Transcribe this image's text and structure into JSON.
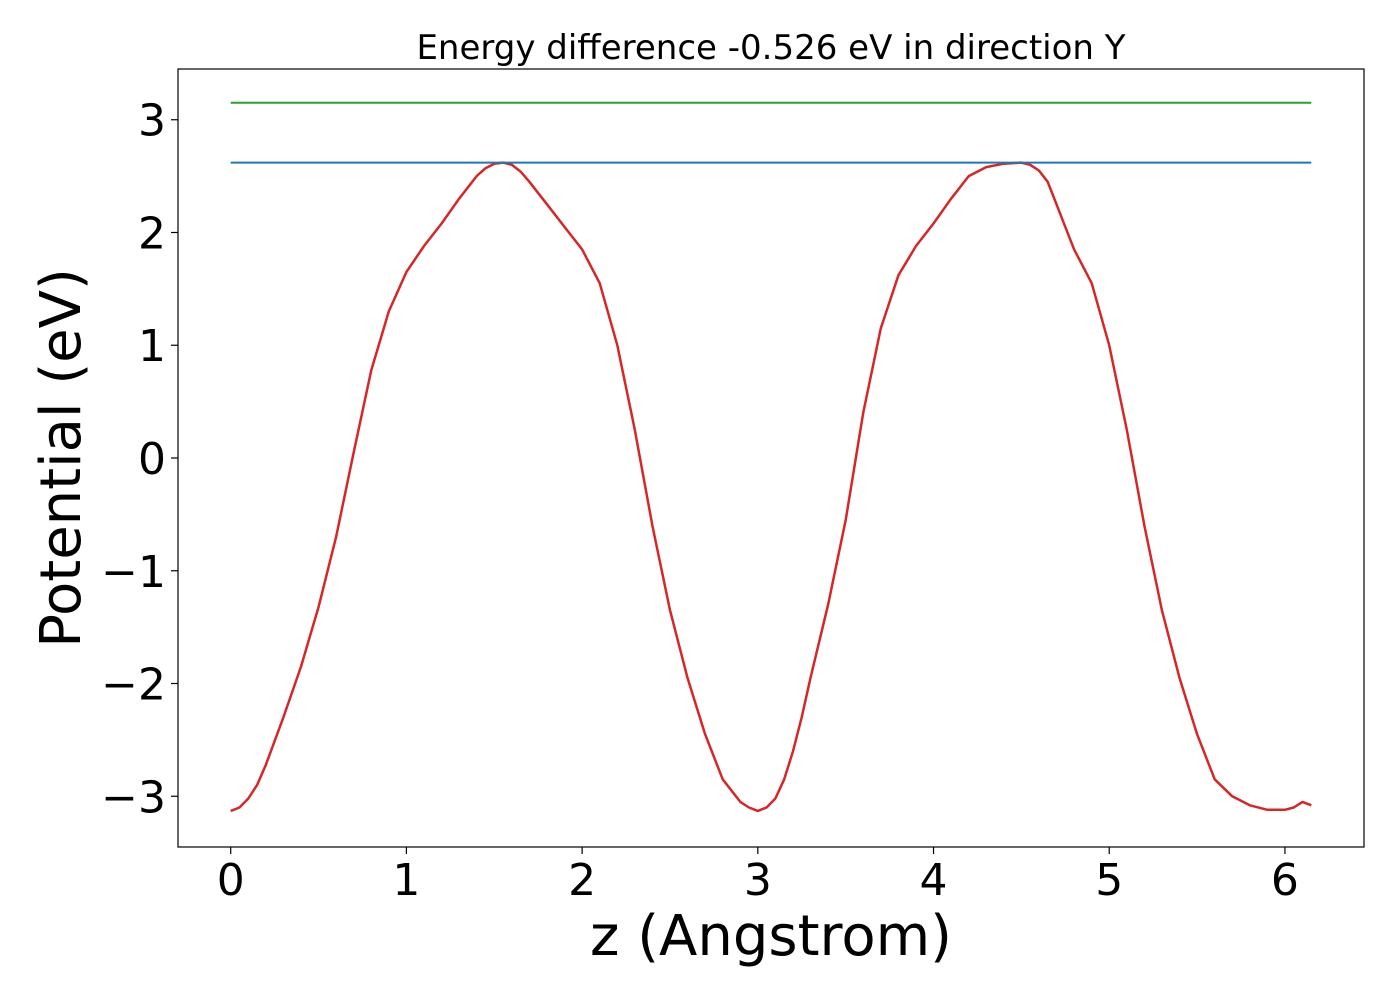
{
  "chart_data": {
    "type": "line",
    "title": "Energy difference -0.526 eV in direction Y",
    "xlabel": "z (Angstrom)",
    "ylabel": "Potential (eV)",
    "xlim": [
      -0.3,
      6.45
    ],
    "ylim": [
      -3.45,
      3.45
    ],
    "x_ticks": [
      0,
      1,
      2,
      3,
      4,
      5,
      6
    ],
    "y_ticks": [
      -3,
      -2,
      -1,
      0,
      1,
      2,
      3
    ],
    "x_tick_labels": [
      "0",
      "1",
      "2",
      "3",
      "4",
      "5",
      "6"
    ],
    "y_tick_labels": [
      "−3",
      "−2",
      "−1",
      "0",
      "1",
      "2",
      "3"
    ],
    "grid": false,
    "legend": "none",
    "series": [
      {
        "color": "#d62728",
        "x": [
          0,
          0.05,
          0.1,
          0.15,
          0.2,
          0.3,
          0.4,
          0.5,
          0.6,
          0.7,
          0.8,
          0.9,
          1.0,
          1.1,
          1.2,
          1.3,
          1.4,
          1.45,
          1.5,
          1.55,
          1.6,
          1.65,
          1.7,
          1.8,
          1.9,
          2.0,
          2.1,
          2.2,
          2.3,
          2.4,
          2.5,
          2.6,
          2.7,
          2.8,
          2.9,
          2.95,
          3.0,
          3.05,
          3.1,
          3.15,
          3.2,
          3.25,
          3.3,
          3.4,
          3.5,
          3.6,
          3.7,
          3.8,
          3.9,
          4.0,
          4.1,
          4.2,
          4.3,
          4.4,
          4.5,
          4.55,
          4.6,
          4.65,
          4.7,
          4.75,
          4.8,
          4.9,
          5.0,
          5.1,
          5.2,
          5.3,
          5.4,
          5.5,
          5.6,
          5.7,
          5.8,
          5.9,
          6.0,
          6.05,
          6.1,
          6.15
        ],
        "y": [
          -3.13,
          -3.1,
          -3.02,
          -2.9,
          -2.72,
          -2.3,
          -1.85,
          -1.32,
          -0.7,
          0.05,
          0.78,
          1.3,
          1.65,
          1.88,
          2.08,
          2.3,
          2.5,
          2.57,
          2.61,
          2.62,
          2.6,
          2.54,
          2.45,
          2.25,
          2.05,
          1.85,
          1.55,
          1.0,
          0.25,
          -0.6,
          -1.35,
          -1.95,
          -2.45,
          -2.85,
          -3.05,
          -3.1,
          -3.13,
          -3.1,
          -3.02,
          -2.85,
          -2.6,
          -2.3,
          -1.95,
          -1.3,
          -0.55,
          0.4,
          1.15,
          1.62,
          1.88,
          2.08,
          2.3,
          2.5,
          2.58,
          2.61,
          2.62,
          2.6,
          2.55,
          2.45,
          2.25,
          2.05,
          1.85,
          1.55,
          1.0,
          0.25,
          -0.6,
          -1.35,
          -1.95,
          -2.45,
          -2.85,
          -3.0,
          -3.08,
          -3.12,
          -3.12,
          -3.1,
          -3.05,
          -3.08
        ]
      },
      {
        "color": "#1f77b4",
        "x": [
          0,
          6.15
        ],
        "y": [
          2.62,
          2.62
        ]
      },
      {
        "color": "#2ca02c",
        "x": [
          0,
          6.15
        ],
        "y": [
          3.15,
          3.15
        ]
      }
    ]
  }
}
